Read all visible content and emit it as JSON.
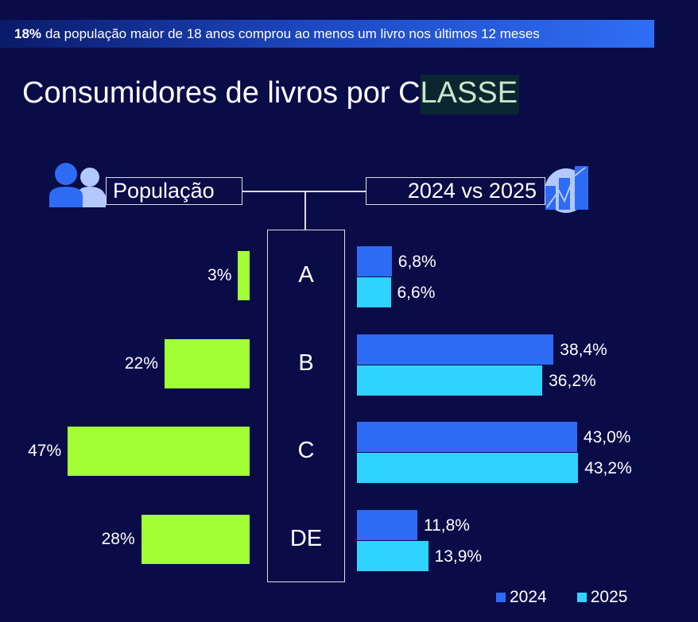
{
  "banner": {
    "highlight": "18%",
    "text": "da população maior de 18 anos comprou ao menos um livro nos últimos 12 meses"
  },
  "title": {
    "prefix": "Consumidores de livros por C",
    "highlight": "LASSE"
  },
  "headers": {
    "left": "População",
    "right": "2024 vs 2025",
    "left_icon": "people-icon",
    "right_icon": "chart-growth-icon"
  },
  "colors": {
    "population": "#a2ff36",
    "y2024": "#2e6bf5",
    "y2025": "#2ed3ff"
  },
  "chart_data": {
    "type": "bar",
    "categories": [
      "A",
      "B",
      "C",
      "DE"
    ],
    "population": {
      "values": [
        3,
        22,
        47,
        28
      ],
      "labels": [
        "3%",
        "22%",
        "47%",
        "28%"
      ]
    },
    "series": [
      {
        "name": "2024",
        "values": [
          6.8,
          38.4,
          43.0,
          11.8
        ],
        "labels": [
          "6,8%",
          "38,4%",
          "43,0%",
          "11,8%"
        ]
      },
      {
        "name": "2025",
        "values": [
          6.6,
          36.2,
          43.2,
          13.9
        ],
        "labels": [
          "6,6%",
          "36,2%",
          "43,2%",
          "13,9%"
        ]
      }
    ]
  },
  "legend": [
    "2024",
    "2025"
  ]
}
